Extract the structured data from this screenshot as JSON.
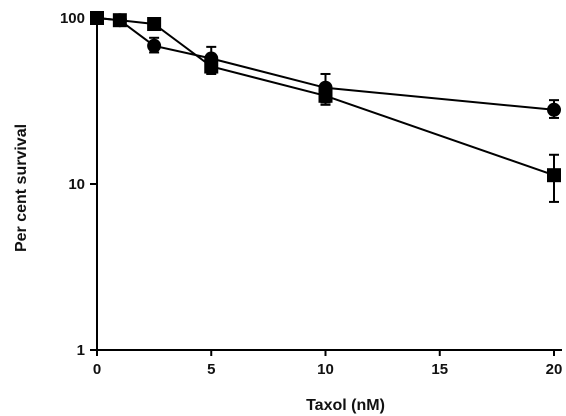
{
  "chart_data": {
    "type": "line",
    "title": "",
    "xlabel": "Taxol (nM)",
    "ylabel": "Per cent survival",
    "xlim": [
      0,
      20
    ],
    "ylim": [
      1,
      100
    ],
    "y_scale": "log",
    "x_ticks": [
      0,
      5,
      10,
      15,
      20
    ],
    "x_tick_labels": [
      "0",
      "5",
      "10",
      "15",
      "20"
    ],
    "y_ticks": [
      1,
      10,
      100
    ],
    "y_tick_labels": [
      "1",
      "10",
      "100"
    ],
    "grid": false,
    "legend": "none",
    "colors": {
      "line": "#000000",
      "marker": "#000000"
    },
    "series": [
      {
        "marker": "circle",
        "points": [
          {
            "x": 0,
            "y": 100
          },
          {
            "x": 1,
            "y": 97
          },
          {
            "x": 2.5,
            "y": 68,
            "err_low": 62,
            "err_high": 76
          },
          {
            "x": 5,
            "y": 57,
            "err_low": 48,
            "err_high": 67
          },
          {
            "x": 10,
            "y": 38,
            "err_low": 31,
            "err_high": 46
          },
          {
            "x": 20,
            "y": 28,
            "err_low": 25,
            "err_high": 32
          }
        ]
      },
      {
        "marker": "square",
        "points": [
          {
            "x": 0,
            "y": 100
          },
          {
            "x": 1,
            "y": 97
          },
          {
            "x": 2.5,
            "y": 92
          },
          {
            "x": 5,
            "y": 51,
            "err_low": 46,
            "err_high": 56
          },
          {
            "x": 10,
            "y": 34,
            "err_low": 30,
            "err_high": 39
          },
          {
            "x": 20,
            "y": 11.3,
            "err_low": 7.8,
            "err_high": 15
          }
        ]
      }
    ]
  }
}
